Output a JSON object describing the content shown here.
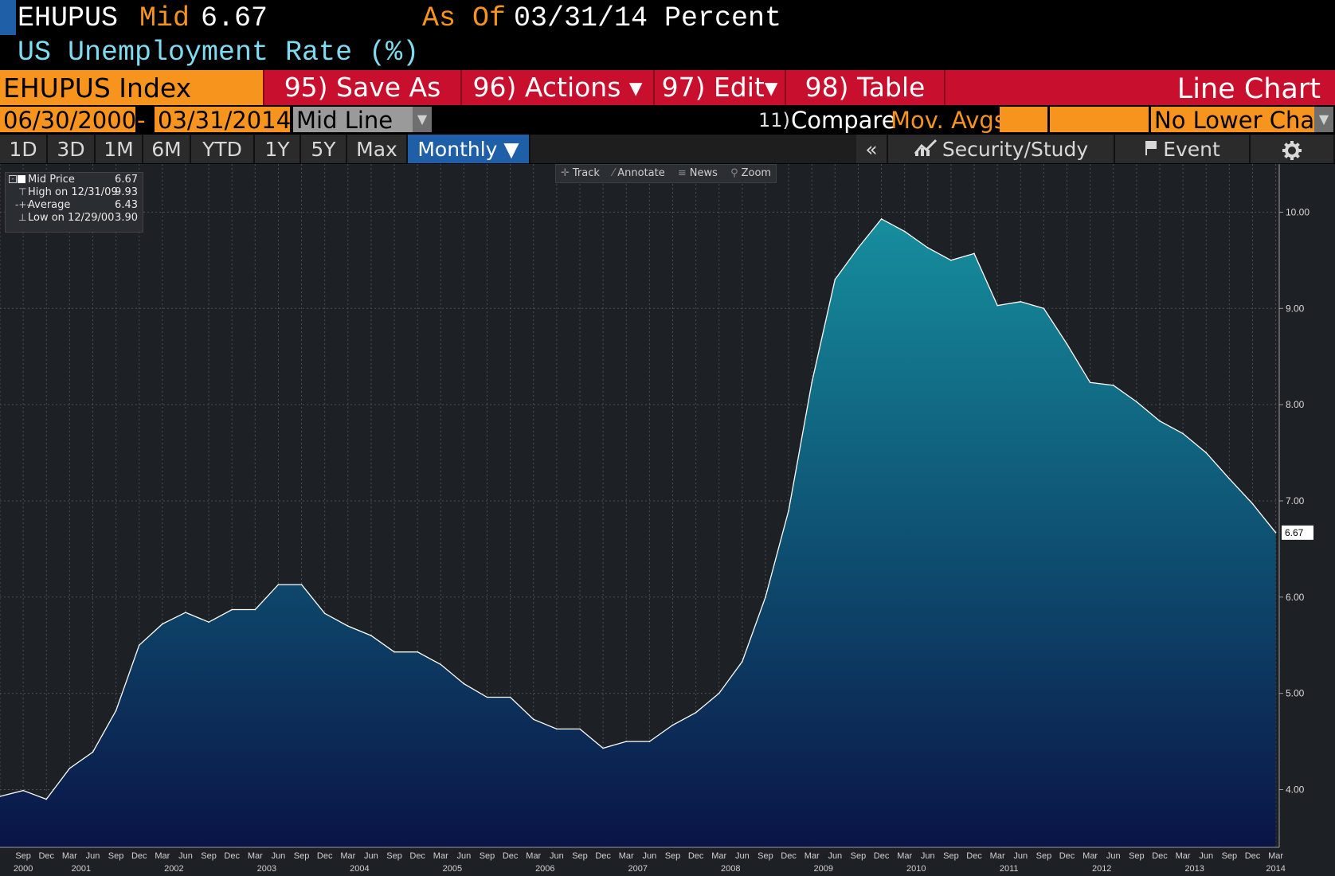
{
  "header": {
    "ticker": "EHUPUS",
    "mid_label": "Mid",
    "mid_value": "6.67",
    "asof_label": "As Of",
    "asof_date": "03/31/14",
    "units": "Percent",
    "description": "US Unemployment Rate (%)"
  },
  "menubar": {
    "security": "EHUPUS Index",
    "save_as": "95) Save As",
    "actions": "96) Actions ▾",
    "edit": "97) Edit▾",
    "table": "98) Table",
    "chart_type": "Line Chart"
  },
  "range_bar": {
    "start_date": "06/30/2000",
    "dash": "-",
    "end_date": "03/31/2014",
    "mode": "Mid Line",
    "compare_num": "11)",
    "compare": "Compare",
    "mov_avgs": "Mov. Avgs",
    "lower_chart": "No Lower Chart"
  },
  "toolbar": {
    "periods": [
      "1D",
      "3D",
      "1M",
      "6M",
      "YTD",
      "1Y",
      "5Y",
      "Max"
    ],
    "frequency": "Monthly ▼",
    "collapse": "«",
    "security_study": "Security/Study",
    "event": "Event"
  },
  "chart_tools": {
    "track": "Track",
    "annotate": "Annotate",
    "news": "News",
    "zoom": "Zoom"
  },
  "legend": {
    "mid_price_label": "Mid Price",
    "mid_price_value": "6.67",
    "high_label": "High on 12/31/09",
    "high_value": "9.93",
    "average_label": "Average",
    "average_value": "6.43",
    "low_label": "Low on 12/29/00",
    "low_value": "3.90"
  },
  "colors": {
    "orange": "#f7941d",
    "red_bar": "#c8102e",
    "cyan_text": "#7fdcf0",
    "area_top": "#158c9c",
    "area_bottom": "#0a1a4a"
  },
  "chart_data": {
    "type": "area",
    "title": "US Unemployment Rate (%)",
    "frequency": "quarterly",
    "x": [
      "2000-06-30",
      "2000-09-30",
      "2000-12-31",
      "2001-03-31",
      "2001-06-30",
      "2001-09-30",
      "2001-12-31",
      "2002-03-31",
      "2002-06-30",
      "2002-09-30",
      "2002-12-31",
      "2003-03-31",
      "2003-06-30",
      "2003-09-30",
      "2003-12-31",
      "2004-03-31",
      "2004-06-30",
      "2004-09-30",
      "2004-12-31",
      "2005-03-31",
      "2005-06-30",
      "2005-09-30",
      "2005-12-31",
      "2006-03-31",
      "2006-06-30",
      "2006-09-30",
      "2006-12-31",
      "2007-03-31",
      "2007-06-30",
      "2007-09-30",
      "2007-12-31",
      "2008-03-31",
      "2008-06-30",
      "2008-09-30",
      "2008-12-31",
      "2009-03-31",
      "2009-06-30",
      "2009-09-30",
      "2009-12-31",
      "2010-03-31",
      "2010-06-30",
      "2010-09-30",
      "2010-12-31",
      "2011-03-31",
      "2011-06-30",
      "2011-09-30",
      "2011-12-31",
      "2012-03-31",
      "2012-06-30",
      "2012-09-30",
      "2012-12-31",
      "2013-03-31",
      "2013-06-30",
      "2013-09-30",
      "2013-12-31",
      "2014-03-31"
    ],
    "values": [
      3.93,
      3.99,
      3.9,
      4.22,
      4.39,
      4.82,
      5.5,
      5.72,
      5.84,
      5.74,
      5.87,
      5.87,
      6.13,
      6.13,
      5.83,
      5.7,
      5.6,
      5.43,
      5.43,
      5.3,
      5.1,
      4.96,
      4.96,
      4.73,
      4.63,
      4.63,
      4.43,
      4.5,
      4.5,
      4.67,
      4.8,
      5.0,
      5.33,
      6.0,
      6.9,
      8.23,
      9.3,
      9.63,
      9.93,
      9.8,
      9.63,
      9.5,
      9.57,
      9.03,
      9.07,
      9.0,
      8.63,
      8.23,
      8.2,
      8.03,
      7.83,
      7.7,
      7.5,
      7.23,
      6.97,
      6.67
    ],
    "y_ticks": [
      "4.00",
      "5.00",
      "6.00",
      "7.00",
      "8.00",
      "9.00",
      "10.00"
    ],
    "ylim": [
      3.4,
      10.5
    ],
    "x_month_labels": [
      "Sep",
      "Dec",
      "Mar",
      "Jun",
      "Sep",
      "Dec",
      "Mar",
      "Jun",
      "Sep",
      "Dec",
      "Mar",
      "Jun",
      "Sep",
      "Dec",
      "Mar",
      "Jun",
      "Sep",
      "Dec",
      "Mar",
      "Jun",
      "Sep",
      "Dec",
      "Mar",
      "Jun",
      "Sep",
      "Dec",
      "Mar",
      "Jun",
      "Sep",
      "Dec",
      "Mar",
      "Jun",
      "Sep",
      "Dec",
      "Mar",
      "Jun",
      "Sep",
      "Dec",
      "Mar",
      "Jun",
      "Sep",
      "Dec",
      "Mar",
      "Jun",
      "Sep",
      "Dec",
      "Mar",
      "Jun",
      "Sep",
      "Dec",
      "Mar",
      "Jun",
      "Sep",
      "Dec",
      "Mar"
    ],
    "x_year_labels": [
      "2000",
      "2001",
      "2002",
      "2003",
      "2004",
      "2005",
      "2006",
      "2007",
      "2008",
      "2009",
      "2010",
      "2011",
      "2012",
      "2013",
      "2014"
    ],
    "last_value_label": "6.67",
    "grid": true
  }
}
